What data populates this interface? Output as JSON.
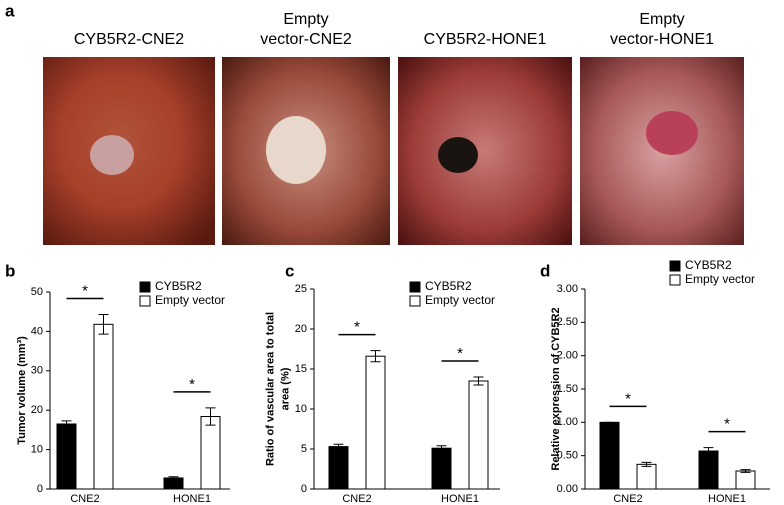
{
  "panel_a": {
    "letter": "a",
    "photos": [
      {
        "label": [
          "CYB5R2-CNE2"
        ]
      },
      {
        "label": [
          "Empty",
          "vector-CNE2"
        ]
      },
      {
        "label": [
          "CYB5R2-HONE1"
        ]
      },
      {
        "label": [
          "Empty",
          "vector-HONE1"
        ]
      }
    ]
  },
  "chart_data": [
    {
      "type": "bar",
      "panel": "b",
      "ylabel": [
        "Tumor volume (mm³)"
      ],
      "categories": [
        "CNE2",
        "HONE1"
      ],
      "series": [
        {
          "name": "CYB5R2",
          "color": "#000000",
          "values": [
            16.5,
            2.8
          ],
          "errors": [
            0.8,
            0.3
          ]
        },
        {
          "name": "Empty vector",
          "color": "#ffffff",
          "values": [
            41.8,
            18.4
          ],
          "errors": [
            2.5,
            2.2
          ]
        }
      ],
      "annotations": [
        "*",
        "*"
      ],
      "ylim": [
        0,
        50
      ],
      "yticks": [
        0,
        10,
        20,
        30,
        40,
        50
      ]
    },
    {
      "type": "bar",
      "panel": "c",
      "ylabel": [
        "Ratio of vascular area to total",
        "area (%)"
      ],
      "categories": [
        "CNE2",
        "HONE1"
      ],
      "series": [
        {
          "name": "CYB5R2",
          "color": "#000000",
          "values": [
            5.3,
            5.1
          ],
          "errors": [
            0.3,
            0.3
          ]
        },
        {
          "name": "Empty vector",
          "color": "#ffffff",
          "values": [
            16.6,
            13.5
          ],
          "errors": [
            0.7,
            0.5
          ]
        }
      ],
      "annotations": [
        "*",
        "*"
      ],
      "ylim": [
        0,
        25
      ],
      "yticks": [
        0,
        5,
        10,
        15,
        20,
        25
      ]
    },
    {
      "type": "bar",
      "panel": "d",
      "ylabel": [
        "Relative expression of CYB5R2"
      ],
      "categories": [
        "CNE2",
        "HONE1"
      ],
      "series": [
        {
          "name": "CYB5R2",
          "color": "#000000",
          "values": [
            1.0,
            0.57
          ],
          "errors": [
            0,
            0.05
          ]
        },
        {
          "name": "Empty vector",
          "color": "#ffffff",
          "values": [
            0.37,
            0.27
          ],
          "errors": [
            0.03,
            0.02
          ]
        }
      ],
      "annotations": [
        "*",
        "*"
      ],
      "ylim": [
        0,
        3
      ],
      "yticks": [
        {
          "value": 0,
          "label": "0.00"
        },
        {
          "value": 0.5,
          "label": "0.50"
        },
        {
          "value": 1,
          "label": "1.00"
        },
        {
          "value": 1.5,
          "label": "1.50"
        },
        {
          "value": 2,
          "label": "2.00"
        },
        {
          "value": 2.5,
          "label": "2.50"
        },
        {
          "value": 3,
          "label": "3.00"
        }
      ]
    }
  ]
}
